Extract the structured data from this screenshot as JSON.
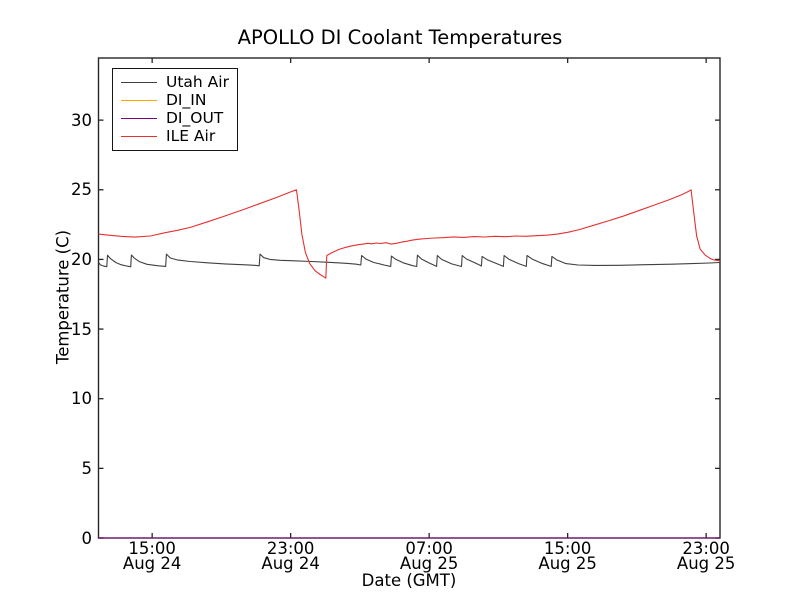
{
  "window": {
    "background": "#ffffff"
  },
  "chart_data": {
    "type": "line",
    "title": "APOLLO DI Coolant Temperatures",
    "xlabel": "Date (GMT)",
    "ylabel": "Temperature (C)",
    "grid": false,
    "legend_position": "upper left",
    "frame_color": "#262626",
    "x_unit": "hours since Aug 24 00:00 GMT",
    "xlim": [
      11.9,
      47.8
    ],
    "ylim": [
      0,
      34.46
    ],
    "y_ticks": [
      0,
      5,
      10,
      15,
      20,
      25,
      30
    ],
    "x_ticks": [
      {
        "value": 15,
        "time": "15:00",
        "date": "Aug 24"
      },
      {
        "value": 23,
        "time": "23:00",
        "date": "Aug 24"
      },
      {
        "value": 31,
        "time": "07:00",
        "date": "Aug 25"
      },
      {
        "value": 39,
        "time": "15:00",
        "date": "Aug 25"
      },
      {
        "value": 47,
        "time": "23:00",
        "date": "Aug 25"
      }
    ],
    "series": [
      {
        "name": "Utah Air",
        "color": "#404040",
        "points": [
          [
            11.9,
            19.8
          ],
          [
            12.0,
            19.62
          ],
          [
            12.2,
            19.52
          ],
          [
            12.38,
            19.48
          ],
          [
            12.42,
            20.3
          ],
          [
            12.6,
            20.05
          ],
          [
            12.9,
            19.78
          ],
          [
            13.2,
            19.62
          ],
          [
            13.55,
            19.52
          ],
          [
            13.76,
            19.47
          ],
          [
            13.8,
            20.32
          ],
          [
            13.98,
            20.08
          ],
          [
            14.3,
            19.82
          ],
          [
            14.7,
            19.65
          ],
          [
            15.3,
            19.55
          ],
          [
            15.78,
            19.5
          ],
          [
            15.82,
            20.38
          ],
          [
            16.05,
            20.1
          ],
          [
            16.5,
            19.95
          ],
          [
            17.2,
            19.85
          ],
          [
            18.2,
            19.76
          ],
          [
            19.2,
            19.68
          ],
          [
            20.2,
            19.62
          ],
          [
            21.0,
            19.57
          ],
          [
            21.18,
            19.54
          ],
          [
            21.23,
            20.38
          ],
          [
            21.45,
            20.12
          ],
          [
            21.8,
            20.0
          ],
          [
            22.4,
            19.94
          ],
          [
            23.2,
            19.9
          ],
          [
            24.2,
            19.85
          ],
          [
            25.2,
            19.79
          ],
          [
            26.2,
            19.72
          ],
          [
            26.8,
            19.66
          ],
          [
            27.05,
            19.6
          ],
          [
            27.1,
            20.28
          ],
          [
            27.35,
            20.02
          ],
          [
            27.8,
            19.78
          ],
          [
            28.4,
            19.6
          ],
          [
            28.78,
            19.5
          ],
          [
            28.82,
            20.24
          ],
          [
            29.05,
            20.02
          ],
          [
            29.5,
            19.76
          ],
          [
            30.05,
            19.55
          ],
          [
            30.28,
            19.49
          ],
          [
            30.32,
            20.3
          ],
          [
            30.55,
            20.03
          ],
          [
            31.0,
            19.74
          ],
          [
            31.43,
            19.5
          ],
          [
            31.47,
            20.28
          ],
          [
            31.72,
            20.0
          ],
          [
            32.3,
            19.68
          ],
          [
            32.87,
            19.49
          ],
          [
            32.91,
            20.28
          ],
          [
            33.15,
            20.03
          ],
          [
            33.7,
            19.72
          ],
          [
            34.02,
            19.53
          ],
          [
            34.06,
            20.22
          ],
          [
            34.35,
            19.98
          ],
          [
            34.9,
            19.7
          ],
          [
            35.29,
            19.5
          ],
          [
            35.33,
            20.28
          ],
          [
            35.62,
            20.0
          ],
          [
            36.2,
            19.68
          ],
          [
            36.61,
            19.5
          ],
          [
            36.65,
            20.28
          ],
          [
            36.95,
            20.02
          ],
          [
            37.5,
            19.72
          ],
          [
            38.05,
            19.5
          ],
          [
            38.09,
            20.22
          ],
          [
            38.35,
            19.98
          ],
          [
            38.9,
            19.7
          ],
          [
            39.6,
            19.6
          ],
          [
            40.6,
            19.57
          ],
          [
            42.0,
            19.58
          ],
          [
            43.5,
            19.62
          ],
          [
            45.0,
            19.66
          ],
          [
            46.2,
            19.7
          ],
          [
            47.2,
            19.74
          ],
          [
            47.8,
            19.78
          ]
        ]
      },
      {
        "name": "DI_IN",
        "color": "#ffa500",
        "points": [
          [
            11.9,
            0
          ],
          [
            47.8,
            0
          ]
        ]
      },
      {
        "name": "DI_OUT",
        "color": "#800080",
        "points": [
          [
            11.9,
            0
          ],
          [
            47.8,
            0
          ]
        ]
      },
      {
        "name": "ILE Air",
        "color": "#e53030",
        "points": [
          [
            11.9,
            21.82
          ],
          [
            12.5,
            21.74
          ],
          [
            13.2,
            21.66
          ],
          [
            14.0,
            21.6
          ],
          [
            14.9,
            21.68
          ],
          [
            15.75,
            21.92
          ],
          [
            16.5,
            22.1
          ],
          [
            17.2,
            22.3
          ],
          [
            18.2,
            22.7
          ],
          [
            19.2,
            23.12
          ],
          [
            20.2,
            23.55
          ],
          [
            21.2,
            24.0
          ],
          [
            22.2,
            24.45
          ],
          [
            23.0,
            24.85
          ],
          [
            23.34,
            25.0
          ],
          [
            23.48,
            23.6
          ],
          [
            23.65,
            21.8
          ],
          [
            23.85,
            20.5
          ],
          [
            24.1,
            19.7
          ],
          [
            24.4,
            19.2
          ],
          [
            24.7,
            18.92
          ],
          [
            24.95,
            18.72
          ],
          [
            25.03,
            18.65
          ],
          [
            25.09,
            20.28
          ],
          [
            25.4,
            20.5
          ],
          [
            25.8,
            20.72
          ],
          [
            26.2,
            20.88
          ],
          [
            26.55,
            20.98
          ],
          [
            26.9,
            21.06
          ],
          [
            27.2,
            21.1
          ],
          [
            27.45,
            21.16
          ],
          [
            27.7,
            21.12
          ],
          [
            27.95,
            21.18
          ],
          [
            28.2,
            21.14
          ],
          [
            28.5,
            21.2
          ],
          [
            28.8,
            21.1
          ],
          [
            29.1,
            21.16
          ],
          [
            29.4,
            21.24
          ],
          [
            29.7,
            21.3
          ],
          [
            30.0,
            21.38
          ],
          [
            30.4,
            21.45
          ],
          [
            30.9,
            21.5
          ],
          [
            31.3,
            21.54
          ],
          [
            31.8,
            21.56
          ],
          [
            32.4,
            21.62
          ],
          [
            33.0,
            21.58
          ],
          [
            33.6,
            21.64
          ],
          [
            34.2,
            21.61
          ],
          [
            34.8,
            21.66
          ],
          [
            35.4,
            21.63
          ],
          [
            36.0,
            21.68
          ],
          [
            36.6,
            21.66
          ],
          [
            37.2,
            21.7
          ],
          [
            37.8,
            21.74
          ],
          [
            38.4,
            21.82
          ],
          [
            39.0,
            21.95
          ],
          [
            39.7,
            22.15
          ],
          [
            40.5,
            22.45
          ],
          [
            41.3,
            22.75
          ],
          [
            42.2,
            23.1
          ],
          [
            43.1,
            23.5
          ],
          [
            44.0,
            23.9
          ],
          [
            44.9,
            24.3
          ],
          [
            45.6,
            24.65
          ],
          [
            46.0,
            24.9
          ],
          [
            46.13,
            25.0
          ],
          [
            46.28,
            23.4
          ],
          [
            46.45,
            21.7
          ],
          [
            46.65,
            20.75
          ],
          [
            46.95,
            20.3
          ],
          [
            47.25,
            20.05
          ],
          [
            47.5,
            19.95
          ],
          [
            47.8,
            19.9
          ]
        ]
      }
    ]
  }
}
